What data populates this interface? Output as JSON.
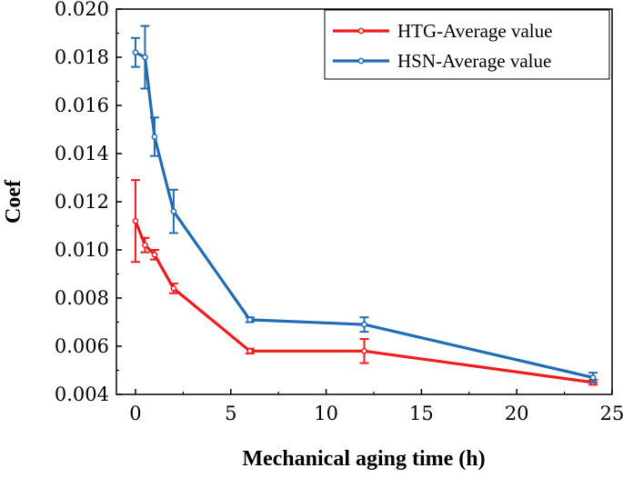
{
  "chart_data": {
    "type": "line",
    "xlabel": "Mechanical aging time (h)",
    "ylabel": "Coef",
    "xlim": [
      -1,
      25
    ],
    "ylim": [
      0.004,
      0.02
    ],
    "xticks": [
      0,
      5,
      10,
      15,
      20,
      25
    ],
    "xtick_labels": [
      "0",
      "5",
      "10",
      "15",
      "20",
      "25"
    ],
    "yticks": [
      0.004,
      0.006,
      0.008,
      0.01,
      0.012,
      0.014,
      0.016,
      0.018,
      0.02
    ],
    "ytick_labels": [
      "0.004",
      "0.006",
      "0.008",
      "0.010",
      "0.012",
      "0.014",
      "0.016",
      "0.018",
      "0.020"
    ],
    "legend_position": "top-right",
    "grid": false,
    "series": [
      {
        "name": "HTG-Average value",
        "color": "#ee1c1c",
        "x": [
          0,
          0.5,
          1,
          2,
          6,
          12,
          24
        ],
        "y": [
          0.0112,
          0.0102,
          0.0098,
          0.0084,
          0.0058,
          0.0058,
          0.0045
        ],
        "err": [
          0.0017,
          0.0003,
          0.0002,
          0.0002,
          0.0001,
          0.0005,
          0.0001
        ]
      },
      {
        "name": "HSN-Average value",
        "color": "#1f6cb4",
        "x": [
          0,
          0.5,
          1,
          2,
          6,
          12,
          24
        ],
        "y": [
          0.0182,
          0.018,
          0.0147,
          0.0116,
          0.0071,
          0.0069,
          0.0047
        ],
        "err": [
          0.0006,
          0.0013,
          0.0008,
          0.0009,
          0.0001,
          0.0003,
          0.0002
        ]
      }
    ]
  }
}
